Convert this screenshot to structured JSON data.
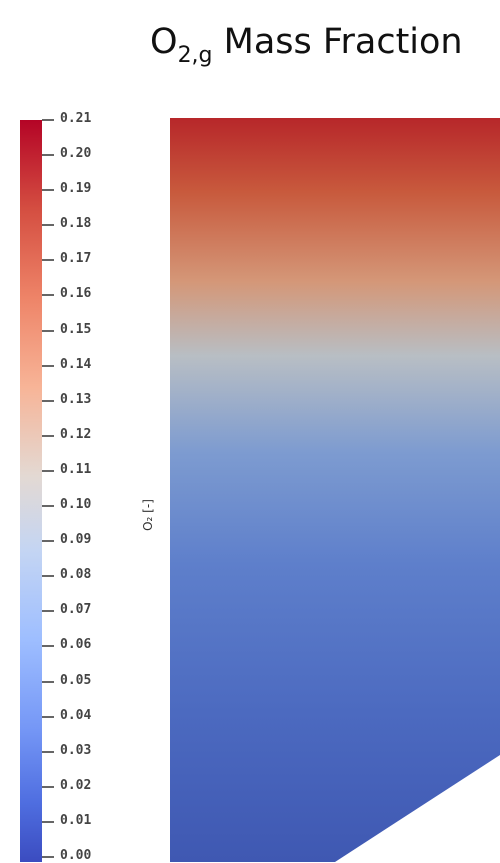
{
  "title": {
    "main": "O",
    "sub": "2,g",
    "rest": " Mass Fraction"
  },
  "colorbar": {
    "label": "O₂ [-]",
    "min": 0.0,
    "max": 0.21,
    "ticks": [
      "0.21",
      "0.20",
      "0.19",
      "0.18",
      "0.17",
      "0.16",
      "0.15",
      "0.14",
      "0.13",
      "0.12",
      "0.11",
      "0.10",
      "0.09",
      "0.08",
      "0.07",
      "0.06",
      "0.05",
      "0.04",
      "0.03",
      "0.02",
      "0.01",
      "0.00"
    ],
    "colors": {
      "high": "#b40426",
      "mid": "#dddddd",
      "low": "#3b4cc0"
    }
  },
  "field": {
    "top_value": 0.21,
    "bottom_value": 0.0,
    "colors": [
      "#b7272a",
      "#c85a3d",
      "#d49778",
      "#b8bec4",
      "#7d9bd0",
      "#5e7fcb",
      "#4c6ac0",
      "#3f58b2"
    ]
  }
}
